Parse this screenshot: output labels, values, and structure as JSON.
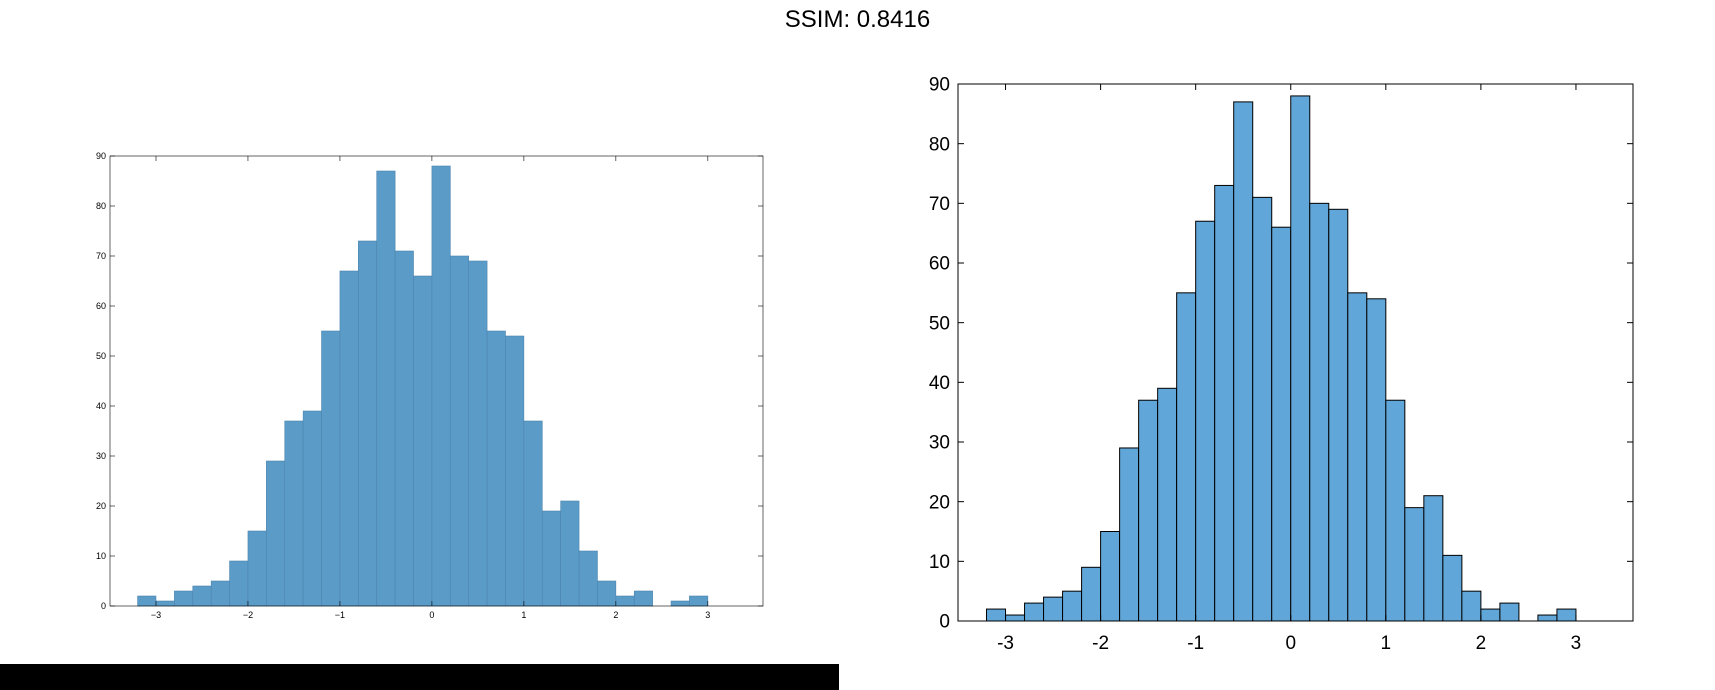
{
  "title": "SSIM: 0.8416",
  "colors": {
    "left_bar_fill": "#5b9bc8",
    "left_bar_stroke": "#4d85ad",
    "right_bar_fill": "#61a6d8",
    "right_bar_stroke": "#000000",
    "axis": "#000000"
  },
  "chart_data": [
    {
      "type": "bar",
      "title": "",
      "xlabel": "",
      "ylabel": "",
      "bin_start": -3.2,
      "bin_width": 0.2,
      "values": [
        2,
        1,
        3,
        4,
        5,
        9,
        15,
        29,
        37,
        39,
        55,
        67,
        73,
        87,
        71,
        66,
        88,
        70,
        69,
        55,
        54,
        37,
        19,
        21,
        11,
        5,
        2,
        3,
        0,
        1,
        2
      ],
      "xticks": [
        -3,
        -2,
        -1,
        0,
        1,
        2,
        3
      ],
      "xtick_labels": [
        "−3",
        "−2",
        "−1",
        "0",
        "1",
        "2",
        "3"
      ],
      "yticks": [
        0,
        10,
        20,
        30,
        40,
        50,
        60,
        70,
        80,
        90
      ],
      "xlim": [
        -3.5,
        3.6
      ],
      "ylim": [
        0,
        90
      ],
      "grid": false,
      "box": true
    },
    {
      "type": "bar",
      "title": "",
      "xlabel": "",
      "ylabel": "",
      "bin_start": -3.2,
      "bin_width": 0.2,
      "values": [
        2,
        1,
        3,
        4,
        5,
        9,
        15,
        29,
        37,
        39,
        55,
        67,
        73,
        87,
        71,
        66,
        88,
        70,
        69,
        55,
        54,
        37,
        19,
        21,
        11,
        5,
        2,
        3,
        0,
        1,
        2
      ],
      "xticks": [
        -3,
        -2,
        -1,
        0,
        1,
        2,
        3
      ],
      "xtick_labels": [
        "-3",
        "-2",
        "-1",
        "0",
        "1",
        "2",
        "3"
      ],
      "yticks": [
        0,
        10,
        20,
        30,
        40,
        50,
        60,
        70,
        80,
        90
      ],
      "xlim": [
        -3.5,
        3.6
      ],
      "ylim": [
        0,
        90
      ],
      "grid": false,
      "box": true
    }
  ]
}
